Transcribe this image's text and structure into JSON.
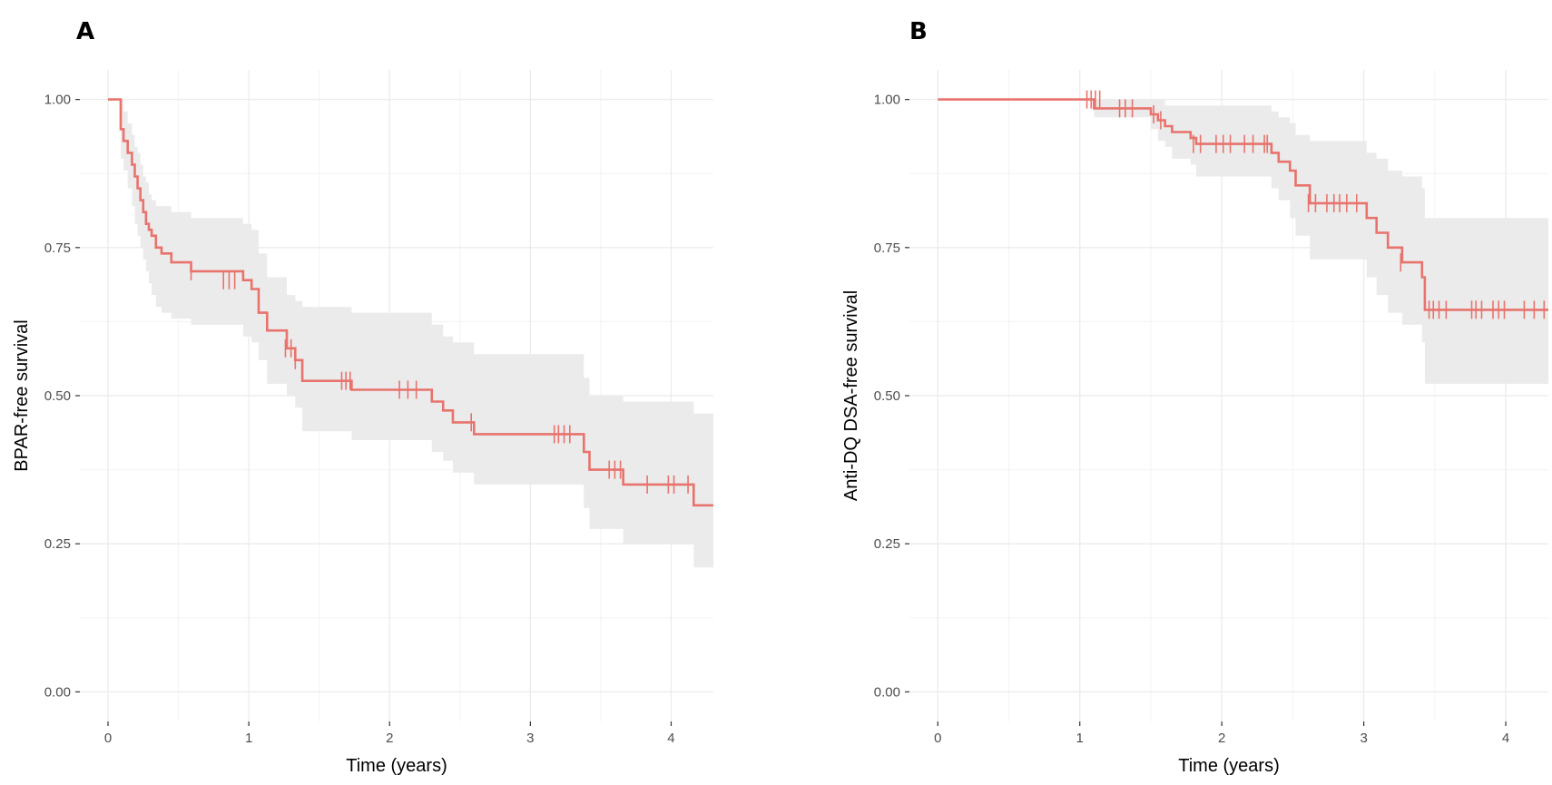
{
  "panels": [
    {
      "letter": "A"
    },
    {
      "letter": "B"
    }
  ],
  "colors": {
    "line": "#e8736c",
    "band": "#ebebeb",
    "grid_major": "#ebebeb",
    "grid_minor": "#f3f3f3"
  },
  "chart_data": [
    {
      "type": "line",
      "panel": "A",
      "xlabel": "Time (years)",
      "ylabel": "BPAR-free survival",
      "xlim": [
        -0.2,
        4.3
      ],
      "ylim": [
        -0.05,
        1.05
      ],
      "x_ticks": [
        0,
        1,
        2,
        3,
        4
      ],
      "x_tick_labels": [
        "0",
        "1",
        "2",
        "3",
        "4"
      ],
      "y_ticks": [
        0,
        0.25,
        0.5,
        0.75,
        1.0
      ],
      "y_tick_labels": [
        "0.00",
        "0.25",
        "0.50",
        "0.75",
        "1.00"
      ],
      "grid": true,
      "series": [
        {
          "step_x": [
            0,
            0.09,
            0.11,
            0.14,
            0.17,
            0.19,
            0.21,
            0.23,
            0.25,
            0.27,
            0.29,
            0.31,
            0.34,
            0.38,
            0.45,
            0.59,
            0.96,
            1.02,
            1.07,
            1.13,
            1.27,
            1.33,
            1.38,
            1.73,
            2.3,
            2.38,
            2.45,
            2.6,
            3.38,
            3.42,
            3.66,
            4.16
          ],
          "step_y": [
            1.0,
            0.95,
            0.93,
            0.91,
            0.89,
            0.87,
            0.85,
            0.83,
            0.81,
            0.79,
            0.78,
            0.77,
            0.75,
            0.74,
            0.725,
            0.71,
            0.695,
            0.68,
            0.64,
            0.61,
            0.58,
            0.56,
            0.525,
            0.51,
            0.49,
            0.475,
            0.455,
            0.435,
            0.405,
            0.375,
            0.35,
            0.315
          ],
          "x_end": 4.3,
          "ci_lower": [
            1.0,
            0.9,
            0.88,
            0.85,
            0.82,
            0.79,
            0.77,
            0.75,
            0.73,
            0.71,
            0.69,
            0.67,
            0.65,
            0.64,
            0.63,
            0.62,
            0.6,
            0.59,
            0.56,
            0.52,
            0.5,
            0.48,
            0.44,
            0.425,
            0.405,
            0.39,
            0.37,
            0.35,
            0.31,
            0.275,
            0.25,
            0.21
          ],
          "ci_upper": [
            1.0,
            1.0,
            0.98,
            0.96,
            0.94,
            0.92,
            0.91,
            0.89,
            0.87,
            0.86,
            0.84,
            0.83,
            0.82,
            0.82,
            0.81,
            0.8,
            0.79,
            0.78,
            0.74,
            0.7,
            0.67,
            0.66,
            0.65,
            0.64,
            0.62,
            0.6,
            0.59,
            0.57,
            0.53,
            0.5,
            0.49,
            0.47
          ],
          "censor_x": [
            0.59,
            0.82,
            0.86,
            0.9,
            1.26,
            1.3,
            1.33,
            1.66,
            1.69,
            1.72,
            2.07,
            2.13,
            2.19,
            2.58,
            3.17,
            3.2,
            3.24,
            3.28,
            3.56,
            3.6,
            3.64,
            3.83,
            3.98,
            4.02,
            4.12
          ],
          "censor_y": [
            0.71,
            0.695,
            0.695,
            0.695,
            0.58,
            0.58,
            0.56,
            0.525,
            0.525,
            0.525,
            0.51,
            0.51,
            0.51,
            0.455,
            0.435,
            0.435,
            0.435,
            0.435,
            0.375,
            0.375,
            0.375,
            0.35,
            0.35,
            0.35,
            0.35
          ]
        }
      ]
    },
    {
      "type": "line",
      "panel": "B",
      "xlabel": "Time (years)",
      "ylabel": "Anti-DQ DSA-free survival",
      "xlim": [
        -0.2,
        4.3
      ],
      "ylim": [
        -0.05,
        1.05
      ],
      "x_ticks": [
        0,
        1,
        2,
        3,
        4
      ],
      "x_tick_labels": [
        "0",
        "1",
        "2",
        "3",
        "4"
      ],
      "y_ticks": [
        0,
        0.25,
        0.5,
        0.75,
        1.0
      ],
      "y_tick_labels": [
        "0.00",
        "0.25",
        "0.50",
        "0.75",
        "1.00"
      ],
      "grid": true,
      "series": [
        {
          "step_x": [
            0,
            1.1,
            1.5,
            1.55,
            1.6,
            1.65,
            1.78,
            1.82,
            2.35,
            2.4,
            2.48,
            2.52,
            2.62,
            3.02,
            3.09,
            3.17,
            3.27,
            3.41,
            3.43
          ],
          "step_y": [
            1.0,
            0.985,
            0.975,
            0.965,
            0.955,
            0.945,
            0.935,
            0.925,
            0.91,
            0.895,
            0.88,
            0.855,
            0.825,
            0.8,
            0.775,
            0.75,
            0.725,
            0.7,
            0.645
          ],
          "x_end": 4.3,
          "ci_lower": [
            1.0,
            0.97,
            0.95,
            0.93,
            0.92,
            0.9,
            0.89,
            0.87,
            0.85,
            0.83,
            0.8,
            0.77,
            0.73,
            0.7,
            0.67,
            0.64,
            0.62,
            0.59,
            0.52
          ],
          "ci_upper": [
            1.0,
            1.0,
            1.0,
            1.0,
            0.99,
            0.99,
            0.99,
            0.99,
            0.98,
            0.97,
            0.96,
            0.94,
            0.93,
            0.91,
            0.9,
            0.88,
            0.87,
            0.85,
            0.8
          ],
          "censor_x": [
            1.05,
            1.08,
            1.11,
            1.14,
            1.28,
            1.32,
            1.37,
            1.52,
            1.57,
            1.8,
            1.85,
            1.96,
            2.01,
            2.06,
            2.16,
            2.22,
            2.3,
            2.32,
            2.61,
            2.66,
            2.74,
            2.79,
            2.83,
            2.88,
            2.95,
            3.26,
            3.46,
            3.49,
            3.53,
            3.58,
            3.76,
            3.79,
            3.83,
            3.91,
            3.95,
            3.99,
            4.13,
            4.2,
            4.27
          ],
          "censor_y": [
            1.0,
            1.0,
            1.0,
            1.0,
            0.985,
            0.985,
            0.985,
            0.975,
            0.965,
            0.925,
            0.925,
            0.925,
            0.925,
            0.925,
            0.925,
            0.925,
            0.925,
            0.925,
            0.825,
            0.825,
            0.825,
            0.825,
            0.825,
            0.825,
            0.825,
            0.725,
            0.645,
            0.645,
            0.645,
            0.645,
            0.645,
            0.645,
            0.645,
            0.645,
            0.645,
            0.645,
            0.645,
            0.645,
            0.645
          ]
        }
      ]
    }
  ]
}
